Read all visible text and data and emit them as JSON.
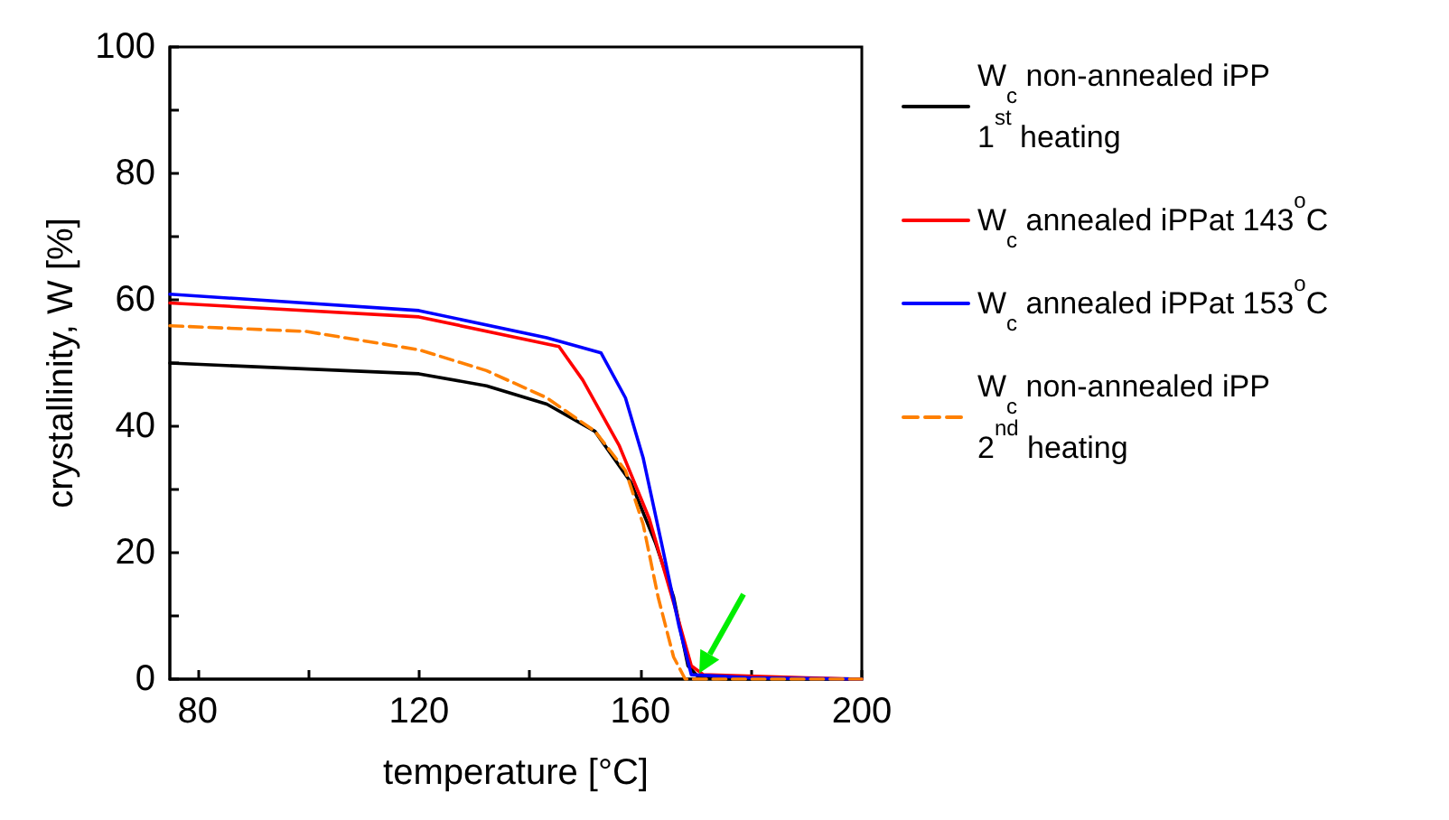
{
  "chart_data": {
    "type": "line",
    "xlabel": "temperature [°C]",
    "ylabel": "crystallinity, W [%]",
    "xlim": [
      75,
      200
    ],
    "ylim": [
      0,
      100
    ],
    "xticks": [
      80,
      {
        "value": 100,
        "label": null
      },
      120,
      {
        "value": 140,
        "label": null
      },
      160,
      {
        "value": 180,
        "label": null
      },
      200
    ],
    "yticks": [
      0,
      {
        "value": 10,
        "label": null
      },
      20,
      {
        "value": 30,
        "label": null
      },
      40,
      {
        "value": 50,
        "label": null
      },
      60,
      {
        "value": 70,
        "label": null
      },
      80,
      {
        "value": 90,
        "label": null
      },
      100
    ],
    "grid": false,
    "legend": "right",
    "marker": "none",
    "series": [
      {
        "name": "W$_{c}$ non-annealed iPP\n1$^{st}$ heating",
        "color": "#000000",
        "line_style": "solid",
        "x": [
          75,
          120,
          132.2,
          143.1,
          151.8,
          158.3,
          162.7,
          166,
          168.6,
          170.3,
          175,
          200
        ],
        "values": [
          50,
          48.3,
          46.4,
          43.5,
          39.2,
          31.1,
          21.6,
          13,
          2.1,
          0.5,
          0,
          0
        ]
      },
      {
        "name": "W$_{c}$ annealed iPPat 143$^{o}$C",
        "color": "#ff0000",
        "line_style": "solid",
        "x": [
          75,
          120,
          145.3,
          149.6,
          156.2,
          161.6,
          166,
          169.2,
          171.4,
          190,
          200
        ],
        "values": [
          59.5,
          57.3,
          52.6,
          47.3,
          36.9,
          25.4,
          12.1,
          2.1,
          0.7,
          0.2,
          0
        ]
      },
      {
        "name": "W$_{c}$ annealed iPPat 153$^{o}$C",
        "color": "#0000ff",
        "line_style": "solid",
        "x": [
          75,
          120,
          143.1,
          152.9,
          157.3,
          160.5,
          163.8,
          167,
          169.2,
          180,
          200
        ],
        "values": [
          60.9,
          58.3,
          54,
          51.6,
          44.5,
          35,
          21.6,
          8.3,
          0.7,
          0.2,
          0
        ]
      },
      {
        "name": "W$_{c}$ non-annealed iPP\n2$^{nd}$ heating",
        "color": "#ff8000",
        "line_style": "dashed",
        "x": [
          75,
          99.6,
          120,
          132.2,
          143.1,
          151.8,
          157.3,
          160.5,
          163.2,
          166,
          168.1,
          200
        ],
        "values": [
          55.9,
          55,
          52.1,
          48.8,
          44.5,
          39.2,
          33,
          24.5,
          13,
          3.5,
          0,
          0
        ]
      }
    ]
  }
}
